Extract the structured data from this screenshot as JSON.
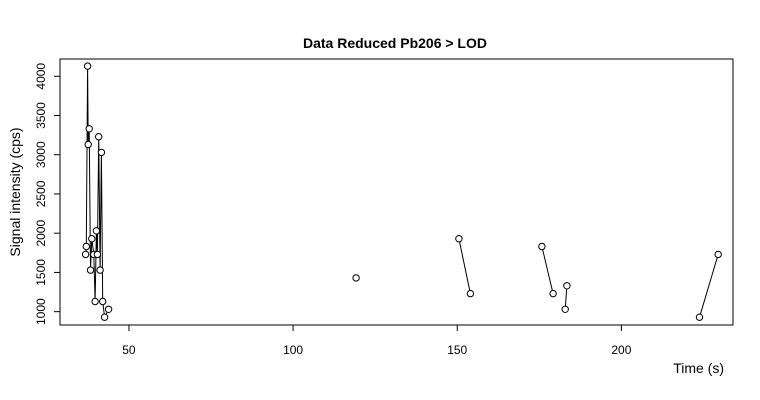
{
  "chart_data": {
    "type": "line",
    "title": "Data Reduced Pb206 > LOD",
    "xlabel": "Time (s)",
    "ylabel": "Signal intensity (cps)",
    "xlim": [
      29,
      234
    ],
    "ylim": [
      830,
      4220
    ],
    "xticks": [
      50,
      100,
      150,
      200
    ],
    "yticks": [
      1000,
      1500,
      2000,
      2500,
      3000,
      3500,
      4000
    ],
    "series": [
      {
        "x": [
          36.8,
          37.0,
          37.4,
          37.6,
          37.9,
          38.3,
          38.7,
          39.3,
          39.7,
          40.1,
          40.4,
          40.8,
          41.2,
          41.6,
          42.0,
          42.6,
          43.8
        ],
        "y": [
          1730,
          1830,
          4130,
          3130,
          3330,
          1530,
          1930,
          1730,
          1130,
          2030,
          1730,
          3230,
          1530,
          3030,
          1130,
          930,
          1030
        ]
      },
      {
        "x": [
          119.2
        ],
        "y": [
          1430
        ]
      },
      {
        "x": [
          150.5,
          154.0
        ],
        "y": [
          1930,
          1230
        ]
      },
      {
        "x": [
          175.8,
          179.2
        ],
        "y": [
          1830,
          1230
        ]
      },
      {
        "x": [
          182.9,
          183.4
        ],
        "y": [
          1030,
          1330
        ]
      },
      {
        "x": [
          223.8,
          229.5
        ],
        "y": [
          930,
          1730
        ]
      }
    ]
  }
}
